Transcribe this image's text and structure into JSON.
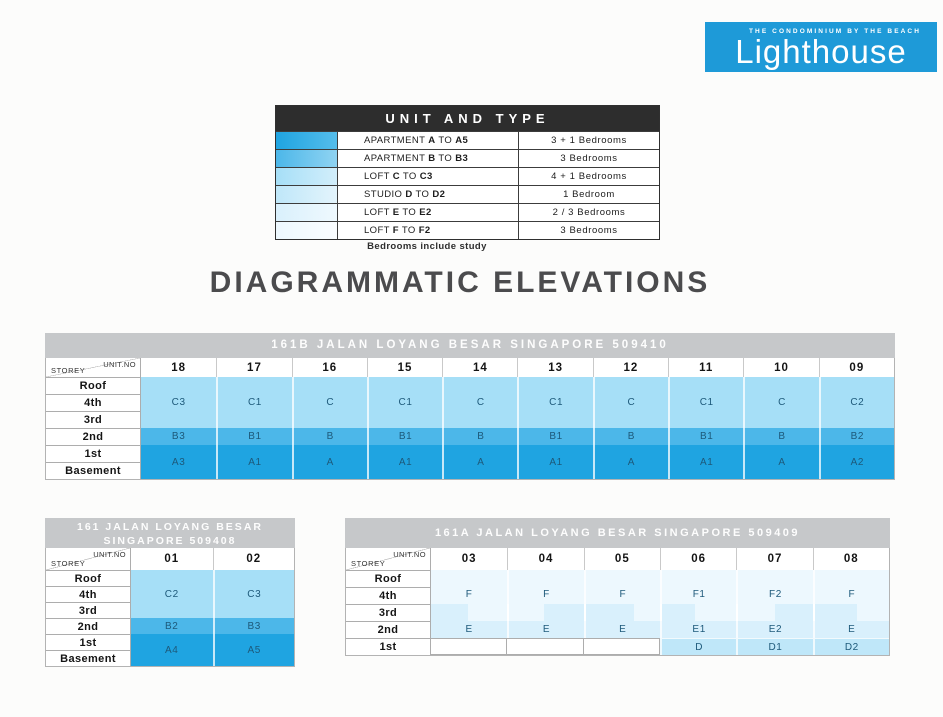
{
  "logo": {
    "tagline": "THE CONDOMINIUM BY THE BEACH",
    "name": "Lighthouse",
    "bg": "#1E9AD8"
  },
  "legend": {
    "title": "UNIT AND TYPE",
    "rows": [
      {
        "type_name": "APARTMENT",
        "u_start": "A",
        "u_end": "A5",
        "bedrooms": "3 + 1 Bedrooms",
        "color": "#1FA4E1",
        "color_light": "#55BDEB"
      },
      {
        "type_name": "APARTMENT",
        "u_start": "B",
        "u_end": "B3",
        "bedrooms": "3 Bedrooms",
        "color": "#4CB7E9",
        "color_light": "#8FD3F2"
      },
      {
        "type_name": "LOFT",
        "u_start": "C",
        "u_end": "C3",
        "bedrooms": "4 + 1 Bedrooms",
        "color": "#A6DFF7",
        "color_light": "#D2EEFB"
      },
      {
        "type_name": "STUDIO",
        "u_start": "D",
        "u_end": "D2",
        "bedrooms": "1 Bedroom",
        "color": "#BFE7F9",
        "color_light": "#E3F4FC"
      },
      {
        "type_name": "LOFT",
        "u_start": "E",
        "u_end": "E2",
        "bedrooms": "2 / 3 Bedrooms",
        "color": "#D9F0FC",
        "color_light": "#EFF9FE"
      },
      {
        "type_name": "LOFT",
        "u_start": "F",
        "u_end": "F2",
        "bedrooms": "3 Bedrooms",
        "color": "#EDF8FE",
        "color_light": "#FAFDFF"
      }
    ],
    "note": "Bedrooms include study"
  },
  "main_title": "DIAGRAMMATIC ELEVATIONS",
  "corner": {
    "unit_no": "UNIT.NO",
    "storey": "STOREY"
  },
  "unit_colors": {
    "A": "#1FA4E1",
    "B": "#4CB7E9",
    "C": "#A6DFF7",
    "D": "#BFE7F9",
    "E": "#D9F0FC",
    "F": "#EDF8FE"
  },
  "tables": {
    "t161b": {
      "header": "161B JALAN LOYANG BESAR SINGAPORE 509410",
      "units": [
        "18",
        "17",
        "16",
        "15",
        "14",
        "13",
        "12",
        "11",
        "10",
        "09"
      ],
      "storeys": [
        "Roof",
        "4th",
        "3rd",
        "2nd",
        "1st",
        "Basement"
      ],
      "c_row": [
        "C3",
        "C1",
        "C",
        "C1",
        "C",
        "C1",
        "C",
        "C1",
        "C",
        "C2"
      ],
      "b_row": [
        "B3",
        "B1",
        "B",
        "B1",
        "B",
        "B1",
        "B",
        "B1",
        "B",
        "B2"
      ],
      "a_row": [
        "A3",
        "A1",
        "A",
        "A1",
        "A",
        "A1",
        "A",
        "A1",
        "A",
        "A2"
      ]
    },
    "t161": {
      "header_line1": "161 JALAN LOYANG BESAR",
      "header_line2": "SINGAPORE 509408",
      "units": [
        "01",
        "02"
      ],
      "storeys": [
        "Roof",
        "4th",
        "3rd",
        "2nd",
        "1st",
        "Basement"
      ],
      "c_row": [
        "C2",
        "C3"
      ],
      "b_row": [
        "B2",
        "B3"
      ],
      "a_row": [
        "A4",
        "A5"
      ]
    },
    "t161a": {
      "header": "161A JALAN LOYANG BESAR SINGAPORE 509409",
      "units": [
        "03",
        "04",
        "05",
        "06",
        "07",
        "08"
      ],
      "storeys": [
        "Roof",
        "4th",
        "3rd",
        "2nd",
        "1st"
      ],
      "f_row": [
        "F",
        "F",
        "F",
        "F1",
        "F2",
        "F"
      ],
      "e_row": [
        "E",
        "E",
        "E",
        "E1",
        "E2",
        "E"
      ],
      "d_row": [
        "",
        "",
        "",
        "D",
        "D1",
        "D2"
      ],
      "loft_steps": [
        {
          "side": "left",
          "pct": 48
        },
        {
          "side": "right",
          "pct": 53
        },
        {
          "side": "left",
          "pct": 65
        },
        {
          "side": "left",
          "pct": 45
        },
        {
          "side": "right",
          "pct": 50
        },
        {
          "side": "left",
          "pct": 57
        }
      ]
    }
  }
}
